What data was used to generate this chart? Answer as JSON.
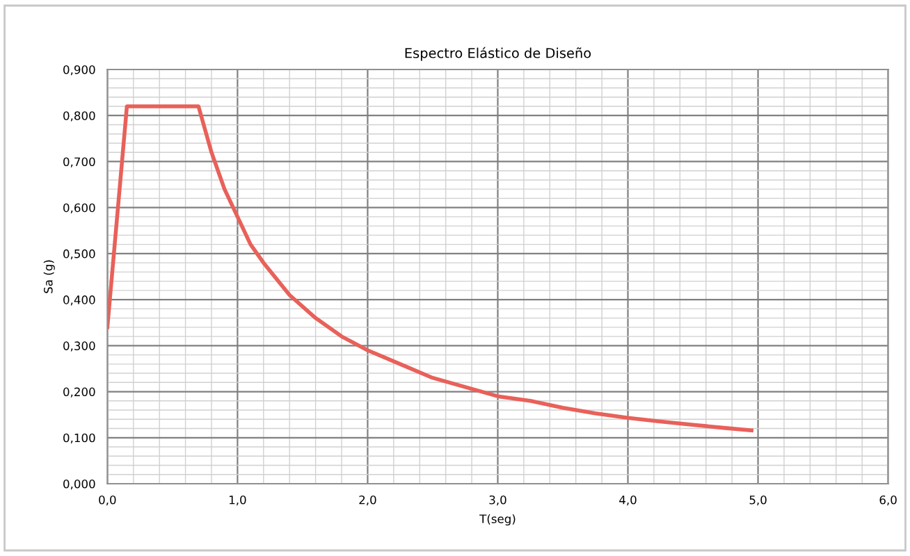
{
  "chart_data": {
    "type": "line",
    "title": "Espectro Elástico de Diseño",
    "xlabel": "T(seg)",
    "ylabel": "Sa (g)",
    "x": [
      0,
      0.15,
      0.7,
      0.8,
      0.9,
      1.0,
      1.1,
      1.2,
      1.4,
      1.6,
      1.8,
      2.0,
      2.25,
      2.5,
      2.75,
      3.0,
      3.25,
      3.5,
      3.75,
      4.0,
      4.25,
      4.5,
      4.75,
      4.95
    ],
    "series": [
      {
        "color": "#e8615a",
        "values": [
          0.34,
          0.82,
          0.82,
          0.72,
          0.64,
          0.58,
          0.52,
          0.48,
          0.41,
          0.36,
          0.32,
          0.29,
          0.26,
          0.23,
          0.21,
          0.19,
          0.18,
          0.165,
          0.153,
          0.143,
          0.135,
          0.128,
          0.121,
          0.116
        ]
      }
    ],
    "xlim": [
      0,
      6
    ],
    "ylim": [
      0,
      0.9
    ],
    "xticks": [
      {
        "value": 0,
        "label": "0,0"
      },
      {
        "value": 1,
        "label": "1,0"
      },
      {
        "value": 2,
        "label": "2,0"
      },
      {
        "value": 3,
        "label": "3,0"
      },
      {
        "value": 4,
        "label": "4,0"
      },
      {
        "value": 5,
        "label": "5,0"
      },
      {
        "value": 6,
        "label": "6,0"
      }
    ],
    "yticks": [
      {
        "value": 0,
        "label": "0,000"
      },
      {
        "value": 0.1,
        "label": "0,100"
      },
      {
        "value": 0.2,
        "label": "0,200"
      },
      {
        "value": 0.3,
        "label": "0,300"
      },
      {
        "value": 0.4,
        "label": "0,400"
      },
      {
        "value": 0.5,
        "label": "0,500"
      },
      {
        "value": 0.6,
        "label": "0,600"
      },
      {
        "value": 0.7,
        "label": "0,700"
      },
      {
        "value": 0.8,
        "label": "0,800"
      },
      {
        "value": 0.9,
        "label": "0,900"
      }
    ],
    "grid": true,
    "line_style": "solid",
    "marker": "none"
  }
}
